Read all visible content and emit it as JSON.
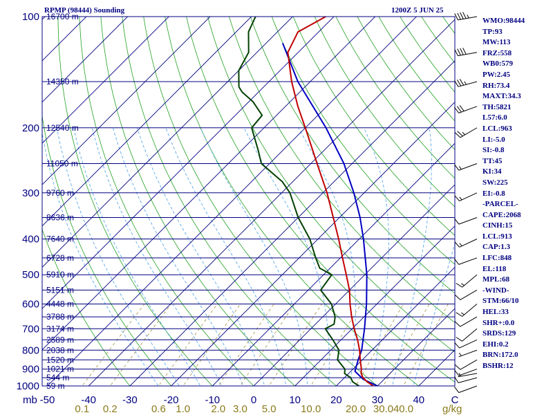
{
  "header": {
    "station": "RPMP (98444) Sounding",
    "time": "1200Z  5 JUN 25"
  },
  "axis_labels": {
    "pressure_unit": "mb",
    "mixing_unit": "g/kg"
  },
  "indices": [
    "WMO:98444",
    "TP:93",
    "MW:113",
    "FRZ:558",
    "WB0:579",
    "PW:2.45",
    "RH:73.4",
    "MAXT:34.3",
    "TH:5821",
    "L57:6.0",
    "LCL:963",
    "LI:-5.0",
    "SI:-0.8",
    "TT:45",
    "KI:34",
    "SW:225",
    "EI:-0.8",
    "-PARCEL-",
    "CAPE:2068",
    "CINH:15",
    "LCL:913",
    "CAP:1.3",
    "LFC:848",
    "EL:118",
    "MPL:68",
    "-WIND-",
    "STM:66/10",
    "HEL:33",
    "SHR+:0.0",
    "SRDS:129",
    "EHI:0.2",
    "BRN:172.0",
    "BSHR:12"
  ],
  "colors": {
    "frame": "#000080",
    "isotherm": "#000080",
    "dry_adiabat": "#20a020",
    "moist_adiabat": "#5aa8e8",
    "mixing_ratio": "#a09040",
    "temperature": "#c00000",
    "dewpoint": "#004000",
    "parcel": "#0000c0",
    "wind_barb": "#000000"
  },
  "chart_data": {
    "type": "skew-t",
    "pressure_range": [
      1000,
      100
    ],
    "temperature_range": [
      -50,
      50
    ],
    "pressure_ticks": [
      1000,
      900,
      800,
      700,
      600,
      500,
      400,
      300,
      200,
      100
    ],
    "temperature_ticks": [
      -50,
      -40,
      -30,
      -20,
      -10,
      0,
      10,
      20,
      30,
      40
    ],
    "temperature_tick_labels": [
      "-50",
      "-40",
      "-30",
      "-20",
      "-10",
      "0",
      "10",
      "20",
      "30",
      "40",
      "C"
    ],
    "mixing_ratio_labels": [
      "0.1",
      "0.2",
      "0.6",
      "1.0",
      "2.0",
      "3.0",
      "5.0",
      "10.0",
      "20.0",
      "30.0",
      "40.0"
    ],
    "height_levels": [
      {
        "p": 1000,
        "label": "59 m"
      },
      {
        "p": 950,
        "label": "544 m"
      },
      {
        "p": 900,
        "label": "1021 m"
      },
      {
        "p": 850,
        "label": "1520 m"
      },
      {
        "p": 800,
        "label": "2038 m"
      },
      {
        "p": 750,
        "label": "2589 m"
      },
      {
        "p": 700,
        "label": "3174 m"
      },
      {
        "p": 650,
        "label": "3788 m"
      },
      {
        "p": 600,
        "label": "4448 m"
      },
      {
        "p": 550,
        "label": "5151 m"
      },
      {
        "p": 500,
        "label": "5910 m"
      },
      {
        "p": 450,
        "label": "6728 m"
      },
      {
        "p": 400,
        "label": "7640 m"
      },
      {
        "p": 350,
        "label": "8636 m"
      },
      {
        "p": 300,
        "label": "9760 m"
      },
      {
        "p": 250,
        "label": "11050 m"
      },
      {
        "p": 200,
        "label": "12540 m"
      },
      {
        "p": 150,
        "label": "14350 m"
      },
      {
        "p": 100,
        "label": "16700 m"
      }
    ],
    "temperature": [
      {
        "p": 1000,
        "t": 29.0
      },
      {
        "p": 975,
        "t": 26.5
      },
      {
        "p": 950,
        "t": 24.5
      },
      {
        "p": 925,
        "t": 23.0
      },
      {
        "p": 900,
        "t": 22.0
      },
      {
        "p": 850,
        "t": 19.5
      },
      {
        "p": 800,
        "t": 17.0
      },
      {
        "p": 750,
        "t": 14.0
      },
      {
        "p": 700,
        "t": 10.5
      },
      {
        "p": 650,
        "t": 7.0
      },
      {
        "p": 600,
        "t": 3.5
      },
      {
        "p": 550,
        "t": 0.0
      },
      {
        "p": 500,
        "t": -4.5
      },
      {
        "p": 450,
        "t": -9.5
      },
      {
        "p": 400,
        "t": -15.0
      },
      {
        "p": 350,
        "t": -21.5
      },
      {
        "p": 300,
        "t": -29.0
      },
      {
        "p": 250,
        "t": -38.5
      },
      {
        "p": 200,
        "t": -50.0
      },
      {
        "p": 175,
        "t": -57.0
      },
      {
        "p": 150,
        "t": -64.5
      },
      {
        "p": 125,
        "t": -72.5
      },
      {
        "p": 110,
        "t": -75.0
      },
      {
        "p": 100,
        "t": -72.0
      }
    ],
    "dewpoint": [
      {
        "p": 1000,
        "t": 25.5
      },
      {
        "p": 975,
        "t": 23.0
      },
      {
        "p": 950,
        "t": 21.5
      },
      {
        "p": 925,
        "t": 19.0
      },
      {
        "p": 900,
        "t": 18.0
      },
      {
        "p": 850,
        "t": 14.0
      },
      {
        "p": 800,
        "t": 12.0
      },
      {
        "p": 750,
        "t": 8.0
      },
      {
        "p": 700,
        "t": 3.5
      },
      {
        "p": 680,
        "t": 4.5
      },
      {
        "p": 650,
        "t": 3.0
      },
      {
        "p": 600,
        "t": -1.0
      },
      {
        "p": 550,
        "t": -7.0
      },
      {
        "p": 500,
        "t": -8.0
      },
      {
        "p": 480,
        "t": -12.5
      },
      {
        "p": 450,
        "t": -16.0
      },
      {
        "p": 400,
        "t": -22.0
      },
      {
        "p": 350,
        "t": -30.0
      },
      {
        "p": 300,
        "t": -38.0
      },
      {
        "p": 280,
        "t": -42.5
      },
      {
        "p": 250,
        "t": -52.0
      },
      {
        "p": 230,
        "t": -56.0
      },
      {
        "p": 200,
        "t": -63.0
      },
      {
        "p": 185,
        "t": -63.5
      },
      {
        "p": 170,
        "t": -69.0
      },
      {
        "p": 160,
        "t": -74.0
      },
      {
        "p": 155,
        "t": -76.0
      },
      {
        "p": 140,
        "t": -80.0
      },
      {
        "p": 125,
        "t": -82.0
      },
      {
        "p": 110,
        "t": -87.0
      },
      {
        "p": 100,
        "t": -89.0
      }
    ],
    "parcel": [
      {
        "p": 1000,
        "t": 30.0
      },
      {
        "p": 960,
        "t": 25.0
      },
      {
        "p": 913,
        "t": 21.0
      },
      {
        "p": 850,
        "t": 19.0
      },
      {
        "p": 800,
        "t": 17.5
      },
      {
        "p": 700,
        "t": 13.0
      },
      {
        "p": 600,
        "t": 7.5
      },
      {
        "p": 500,
        "t": 0.5
      },
      {
        "p": 400,
        "t": -9.0
      },
      {
        "p": 350,
        "t": -15.0
      },
      {
        "p": 300,
        "t": -22.5
      },
      {
        "p": 250,
        "t": -32.0
      },
      {
        "p": 200,
        "t": -45.0
      },
      {
        "p": 150,
        "t": -63.0
      },
      {
        "p": 118,
        "t": -76.0
      }
    ],
    "wind_barbs": [
      {
        "p": 1000,
        "dir": 250,
        "spd": 10
      },
      {
        "p": 950,
        "dir": 255,
        "spd": 10
      },
      {
        "p": 925,
        "dir": 260,
        "spd": 5
      },
      {
        "p": 900,
        "dir": 250,
        "spd": 10
      },
      {
        "p": 850,
        "dir": 240,
        "spd": 10
      },
      {
        "p": 800,
        "dir": 250,
        "spd": 5
      },
      {
        "p": 750,
        "dir": 245,
        "spd": 10
      },
      {
        "p": 700,
        "dir": 230,
        "spd": 10
      },
      {
        "p": 650,
        "dir": 240,
        "spd": 10
      },
      {
        "p": 600,
        "dir": 230,
        "spd": 15
      },
      {
        "p": 550,
        "dir": 240,
        "spd": 10
      },
      {
        "p": 500,
        "dir": 230,
        "spd": 15
      },
      {
        "p": 450,
        "dir": 250,
        "spd": 10
      },
      {
        "p": 400,
        "dir": 245,
        "spd": 15
      },
      {
        "p": 350,
        "dir": 250,
        "spd": 10
      },
      {
        "p": 300,
        "dir": 245,
        "spd": 15
      },
      {
        "p": 250,
        "dir": 250,
        "spd": 15
      },
      {
        "p": 200,
        "dir": 240,
        "spd": 25
      },
      {
        "p": 175,
        "dir": 250,
        "spd": 30
      },
      {
        "p": 150,
        "dir": 255,
        "spd": 35
      },
      {
        "p": 125,
        "dir": 260,
        "spd": 40
      },
      {
        "p": 100,
        "dir": 260,
        "spd": 45
      }
    ]
  }
}
